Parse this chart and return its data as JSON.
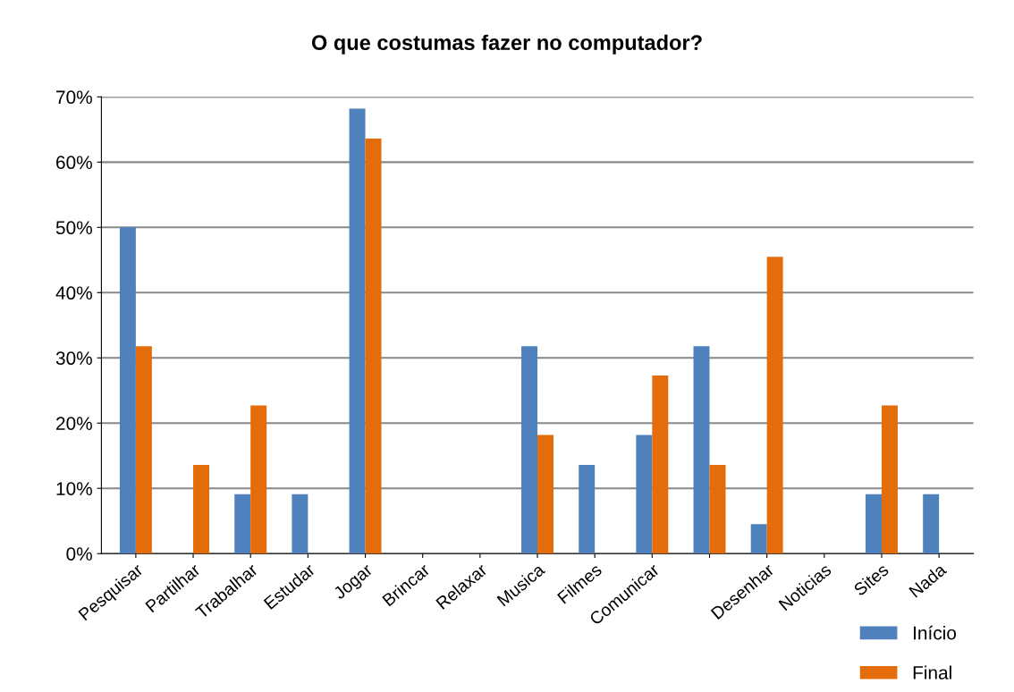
{
  "chart_data": {
    "type": "bar",
    "title": "O que costumas fazer no computador?",
    "categories": [
      "Pesquisar",
      "Partilhar",
      "Trabalhar",
      "Estudar",
      "Jogar",
      "Brincar",
      "Relaxar",
      "Musica",
      "Filmes",
      "Comunicar",
      null,
      "Desenhar",
      "Noticias",
      "Sites",
      "Nada"
    ],
    "series": [
      {
        "name": "Início",
        "color": "#4f81bd",
        "values": [
          50.0,
          0,
          9.1,
          9.1,
          68.2,
          0,
          0,
          31.8,
          13.6,
          18.2,
          31.8,
          4.5,
          0,
          9.1,
          9.1
        ]
      },
      {
        "name": "Final",
        "color": "#e46c0a",
        "values": [
          31.8,
          13.6,
          22.7,
          0,
          63.6,
          0,
          0,
          18.2,
          0,
          27.3,
          13.6,
          45.5,
          0,
          22.7,
          0
        ]
      }
    ],
    "ylim": [
      0,
      70
    ],
    "yticks": [
      {
        "value": 0,
        "label": "0%"
      },
      {
        "value": 10,
        "label": "10%"
      },
      {
        "value": 20,
        "label": "20%"
      },
      {
        "value": 30,
        "label": "30%"
      },
      {
        "value": 40,
        "label": "40%"
      },
      {
        "value": 50,
        "label": "50%"
      },
      {
        "value": 60,
        "label": "60%"
      },
      {
        "value": 70,
        "label": "70%"
      }
    ],
    "grid": "y",
    "legend": "bottom right"
  }
}
